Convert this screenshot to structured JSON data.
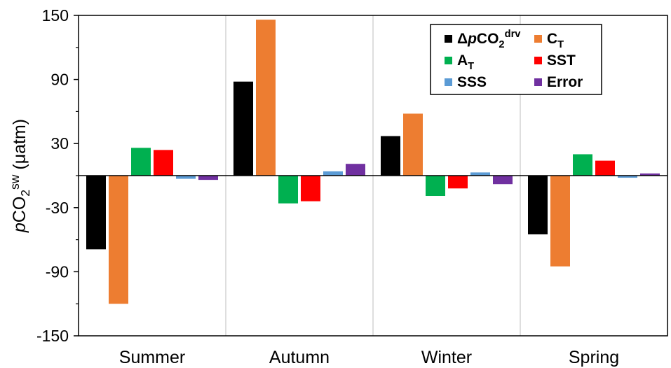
{
  "chart_data": {
    "type": "bar",
    "categories": [
      "Summer",
      "Autumn",
      "Winter",
      "Spring"
    ],
    "series": [
      {
        "name": "ΔpCO2drv",
        "label_parts": [
          {
            "t": "Δ",
            "style": "normal"
          },
          {
            "t": "p",
            "style": "italic"
          },
          {
            "t": "CO",
            "style": "normal"
          },
          {
            "t": "2",
            "style": "sub"
          },
          {
            "t": "drv",
            "style": "sup"
          }
        ],
        "color": "#000000",
        "values": [
          -69,
          88,
          37,
          -55
        ]
      },
      {
        "name": "CT",
        "label_parts": [
          {
            "t": "C",
            "style": "normal"
          },
          {
            "t": "T",
            "style": "sub"
          }
        ],
        "color": "#ED7D31",
        "values": [
          -120,
          146,
          58,
          -85
        ]
      },
      {
        "name": "AT",
        "label_parts": [
          {
            "t": "A",
            "style": "normal"
          },
          {
            "t": "T",
            "style": "sub"
          }
        ],
        "color": "#00B050",
        "values": [
          26,
          -26,
          -19,
          20
        ]
      },
      {
        "name": "SST",
        "label_parts": [
          {
            "t": "SST",
            "style": "normal"
          }
        ],
        "color": "#FF0000",
        "values": [
          24,
          -24,
          -12,
          14
        ]
      },
      {
        "name": "SSS",
        "label_parts": [
          {
            "t": "SSS",
            "style": "normal"
          }
        ],
        "color": "#5B9BD5",
        "values": [
          -3,
          4,
          3,
          -2
        ]
      },
      {
        "name": "Error",
        "label_parts": [
          {
            "t": "Error",
            "style": "normal"
          }
        ],
        "color": "#7030A0",
        "values": [
          -4,
          11,
          -8,
          2
        ]
      }
    ],
    "ylabel_parts": [
      {
        "t": "p",
        "style": "italic"
      },
      {
        "t": "CO",
        "style": "normal"
      },
      {
        "t": "2",
        "style": "sub"
      },
      {
        "t": "sw",
        "style": "sup"
      },
      {
        "t": " (μatm)",
        "style": "normal"
      }
    ],
    "ylabel": "pCO2sw (μatm)",
    "xlabel": "",
    "title": "",
    "ylim": [
      -150,
      150
    ],
    "yticks": [
      150,
      90,
      30,
      -30,
      -90,
      -150
    ],
    "grid": false,
    "category_separators": true,
    "legend_position": "top-right"
  }
}
